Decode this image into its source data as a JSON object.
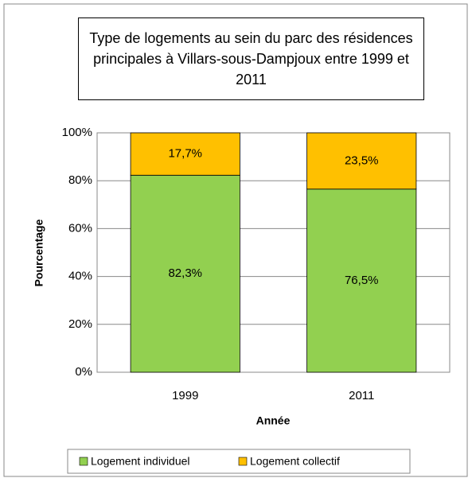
{
  "chart_data": {
    "type": "stacked_bar",
    "title": "Type de logements au sein du parc des résidences principales à Villars-sous-Dampjoux entre 1999 et 2011",
    "x_label": "Année",
    "y_label": "Pourcentage",
    "categories": [
      "1999",
      "2011"
    ],
    "series": [
      {
        "name": "Logement individuel",
        "color": "#92d050",
        "values": [
          82.3,
          76.5
        ],
        "value_labels": [
          "82,3%",
          "76,5%"
        ]
      },
      {
        "name": "Logement collectif",
        "color": "#ffc000",
        "values": [
          17.7,
          23.5
        ],
        "value_labels": [
          "17,7%",
          "23,5%"
        ]
      }
    ],
    "ylim": [
      0,
      100
    ],
    "yticks": [
      {
        "value": 0,
        "label": "0%"
      },
      {
        "value": 20,
        "label": "20%"
      },
      {
        "value": 40,
        "label": "40%"
      },
      {
        "value": 60,
        "label": "60%"
      },
      {
        "value": 80,
        "label": "80%"
      },
      {
        "value": 100,
        "label": "100%"
      }
    ],
    "grid": true,
    "legend": "bottom"
  }
}
